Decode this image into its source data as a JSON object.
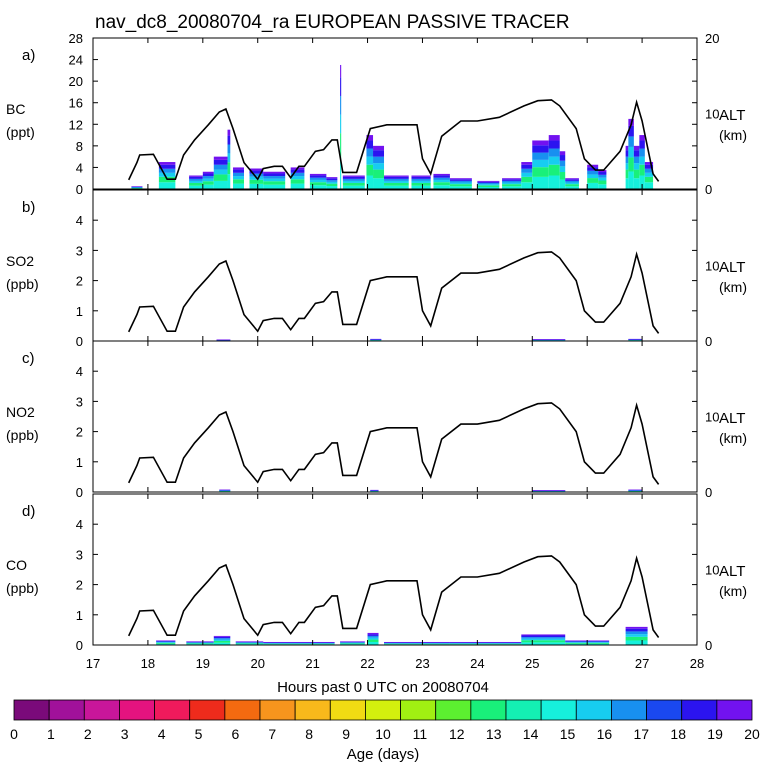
{
  "chart_data": {
    "type": "area",
    "title": "nav_dc8_20080704_ra EUROPEAN PASSIVE TRACER",
    "xlabel": "Hours past 0 UTC on 20080704",
    "xlim": [
      17,
      28
    ],
    "x_ticks": [
      "17",
      "18",
      "19",
      "20",
      "21",
      "22",
      "23",
      "24",
      "25",
      "26",
      "27",
      "28"
    ],
    "right_axis": {
      "label": "ALT",
      "unit": "(km)",
      "ylim": [
        0,
        20
      ],
      "ticks": [
        "0",
        "10",
        "20"
      ]
    },
    "altitude_track": {
      "hours": [
        17.65,
        17.8,
        17.85,
        18.1,
        18.35,
        18.5,
        18.65,
        18.85,
        19.1,
        19.3,
        19.42,
        19.55,
        19.75,
        20.0,
        20.1,
        20.3,
        20.45,
        20.6,
        20.75,
        20.85,
        21.05,
        21.2,
        21.35,
        21.45,
        21.55,
        21.8,
        22.05,
        22.35,
        22.55,
        22.9,
        23.0,
        23.15,
        23.35,
        23.7,
        24.0,
        24.4,
        24.85,
        25.1,
        25.35,
        25.5,
        25.8,
        25.95,
        26.15,
        26.3,
        26.6,
        26.8,
        26.9,
        27.0,
        27.2,
        27.3
      ],
      "alt_km": [
        1.2,
        3.5,
        4.5,
        4.6,
        1.3,
        1.3,
        4.5,
        6.5,
        8.5,
        10.2,
        10.6,
        8.0,
        3.5,
        1.3,
        2.7,
        3.0,
        3.0,
        1.5,
        3.0,
        3.0,
        5.0,
        5.2,
        6.5,
        6.5,
        2.2,
        2.2,
        8.0,
        8.5,
        8.5,
        8.5,
        4.0,
        2.0,
        7.0,
        9.0,
        9.0,
        9.5,
        11.0,
        11.7,
        11.8,
        11.0,
        8.0,
        4.0,
        2.5,
        2.5,
        5.0,
        8.5,
        11.5,
        9.0,
        2.0,
        1.0
      ]
    },
    "colorbar": {
      "label": "Age (days)",
      "ticks": [
        "0",
        "1",
        "2",
        "3",
        "4",
        "5",
        "6",
        "7",
        "8",
        "9",
        "10",
        "11",
        "12",
        "13",
        "14",
        "15",
        "16",
        "17",
        "18",
        "19",
        "20"
      ],
      "colors": [
        "#7a0a7a",
        "#a1119a",
        "#c8169a",
        "#e4137f",
        "#f01a5c",
        "#ee2b1c",
        "#f46a10",
        "#f7951d",
        "#f8b91b",
        "#f1db13",
        "#d3f00e",
        "#a1f012",
        "#5cf030",
        "#19f07a",
        "#14f0b3",
        "#16f0dc",
        "#17cdf0",
        "#1890f0",
        "#1a48f0",
        "#2b14f0",
        "#7212f0"
      ]
    },
    "panels": [
      {
        "letter": "a)",
        "species": "BC",
        "unit": "(ppt)",
        "ylim": [
          0,
          28
        ],
        "ticks": [
          "0",
          "4",
          "8",
          "12",
          "16",
          "20",
          "24",
          "28"
        ],
        "segments": [
          {
            "start": 17.7,
            "end": 17.9,
            "total": 0.5
          },
          {
            "start": 18.2,
            "end": 18.5,
            "total": 5.0
          },
          {
            "start": 18.75,
            "end": 19.0,
            "total": 2.5
          },
          {
            "start": 19.0,
            "end": 19.2,
            "total": 3.2
          },
          {
            "start": 19.2,
            "end": 19.45,
            "total": 6.0
          },
          {
            "start": 19.45,
            "end": 19.5,
            "total": 11.0
          },
          {
            "start": 19.55,
            "end": 19.75,
            "total": 4.0
          },
          {
            "start": 19.85,
            "end": 20.1,
            "total": 3.8
          },
          {
            "start": 20.1,
            "end": 20.5,
            "total": 3.2
          },
          {
            "start": 20.6,
            "end": 20.85,
            "total": 4.0
          },
          {
            "start": 20.95,
            "end": 21.25,
            "total": 2.8
          },
          {
            "start": 21.25,
            "end": 21.45,
            "total": 2.2
          },
          {
            "start": 21.5,
            "end": 21.52,
            "total": 23.0
          },
          {
            "start": 21.55,
            "end": 21.95,
            "total": 2.5
          },
          {
            "start": 21.98,
            "end": 22.1,
            "total": 10.0
          },
          {
            "start": 22.1,
            "end": 22.3,
            "total": 8.0
          },
          {
            "start": 22.3,
            "end": 22.75,
            "total": 2.5
          },
          {
            "start": 22.8,
            "end": 23.15,
            "total": 2.5
          },
          {
            "start": 23.2,
            "end": 23.5,
            "total": 2.8
          },
          {
            "start": 23.5,
            "end": 23.9,
            "total": 2.0
          },
          {
            "start": 24.0,
            "end": 24.4,
            "total": 1.5
          },
          {
            "start": 24.45,
            "end": 24.8,
            "total": 2.0
          },
          {
            "start": 24.8,
            "end": 25.0,
            "total": 5.0
          },
          {
            "start": 25.0,
            "end": 25.3,
            "total": 9.0
          },
          {
            "start": 25.3,
            "end": 25.5,
            "total": 10.0
          },
          {
            "start": 25.5,
            "end": 25.6,
            "total": 7.0
          },
          {
            "start": 25.6,
            "end": 25.85,
            "total": 2.0
          },
          {
            "start": 26.0,
            "end": 26.2,
            "total": 4.5
          },
          {
            "start": 26.2,
            "end": 26.35,
            "total": 3.5
          },
          {
            "start": 26.7,
            "end": 26.75,
            "total": 8.0
          },
          {
            "start": 26.75,
            "end": 26.85,
            "total": 13.0
          },
          {
            "start": 26.85,
            "end": 26.95,
            "total": 8.0
          },
          {
            "start": 26.95,
            "end": 27.05,
            "total": 10.0
          },
          {
            "start": 27.05,
            "end": 27.2,
            "total": 5.0
          }
        ]
      },
      {
        "letter": "b)",
        "species": "SO2",
        "unit": "(ppb)",
        "ylim": [
          0,
          5
        ],
        "ticks": [
          "0",
          "1",
          "2",
          "3",
          "4"
        ],
        "segments": [
          {
            "start": 19.25,
            "end": 19.5,
            "total": 0.05
          },
          {
            "start": 22.05,
            "end": 22.25,
            "total": 0.07
          },
          {
            "start": 25.0,
            "end": 25.6,
            "total": 0.06
          },
          {
            "start": 26.75,
            "end": 27.0,
            "total": 0.07
          }
        ]
      },
      {
        "letter": "c)",
        "species": "NO2",
        "unit": "(ppb)",
        "ylim": [
          0,
          5
        ],
        "ticks": [
          "0",
          "1",
          "2",
          "3",
          "4"
        ],
        "segments": [
          {
            "start": 19.3,
            "end": 19.5,
            "total": 0.08
          },
          {
            "start": 22.05,
            "end": 22.2,
            "total": 0.07
          },
          {
            "start": 25.0,
            "end": 25.6,
            "total": 0.06
          },
          {
            "start": 26.75,
            "end": 27.0,
            "total": 0.08
          }
        ]
      },
      {
        "letter": "d)",
        "species": "CO",
        "unit": "(ppb)",
        "ylim": [
          0,
          5
        ],
        "ticks": [
          "0",
          "1",
          "2",
          "3",
          "4"
        ],
        "segments": [
          {
            "start": 18.15,
            "end": 18.5,
            "total": 0.15
          },
          {
            "start": 18.7,
            "end": 19.2,
            "total": 0.12
          },
          {
            "start": 19.2,
            "end": 19.5,
            "total": 0.3
          },
          {
            "start": 19.6,
            "end": 20.1,
            "total": 0.12
          },
          {
            "start": 20.1,
            "end": 21.4,
            "total": 0.1
          },
          {
            "start": 21.5,
            "end": 21.95,
            "total": 0.12
          },
          {
            "start": 22.0,
            "end": 22.2,
            "total": 0.4
          },
          {
            "start": 22.3,
            "end": 23.5,
            "total": 0.1
          },
          {
            "start": 23.5,
            "end": 24.8,
            "total": 0.1
          },
          {
            "start": 24.8,
            "end": 25.6,
            "total": 0.35
          },
          {
            "start": 25.6,
            "end": 26.4,
            "total": 0.15
          },
          {
            "start": 26.7,
            "end": 27.1,
            "total": 0.6
          }
        ]
      }
    ]
  }
}
